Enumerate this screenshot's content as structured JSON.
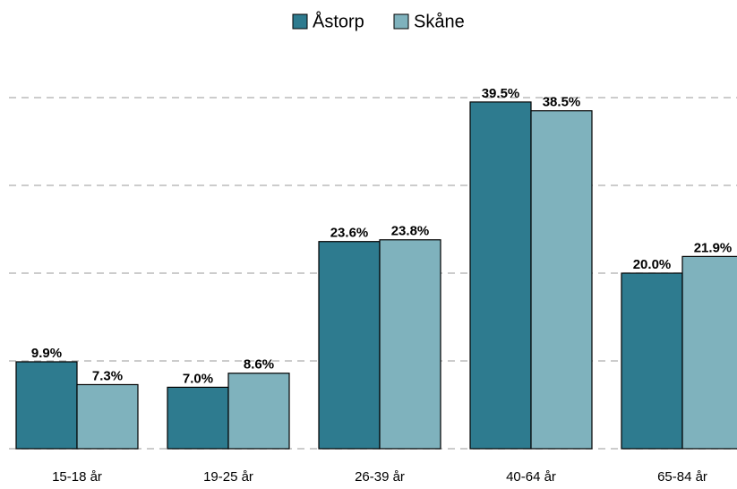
{
  "chart_data": {
    "type": "bar",
    "categories": [
      "15-18 år",
      "19-25 år",
      "26-39 år",
      "40-64 år",
      "65-84 år"
    ],
    "series": [
      {
        "name": "Åstorp",
        "color": "#2e7b8f",
        "values": [
          9.9,
          7.0,
          23.6,
          39.5,
          20.0
        ],
        "value_labels": [
          "9.9%",
          "7.0%",
          "23.6%",
          "39.5%",
          "20.0%"
        ]
      },
      {
        "name": "Skåne",
        "color": "#7fb2bd",
        "values": [
          7.3,
          8.6,
          23.8,
          38.5,
          21.9
        ],
        "value_labels": [
          "7.3%",
          "8.6%",
          "23.8%",
          "38.5%",
          "21.9%"
        ]
      }
    ],
    "ylim": [
      0,
      45
    ],
    "yticks": [
      0,
      10,
      20,
      30,
      40
    ],
    "grid": true,
    "legend": "top"
  }
}
